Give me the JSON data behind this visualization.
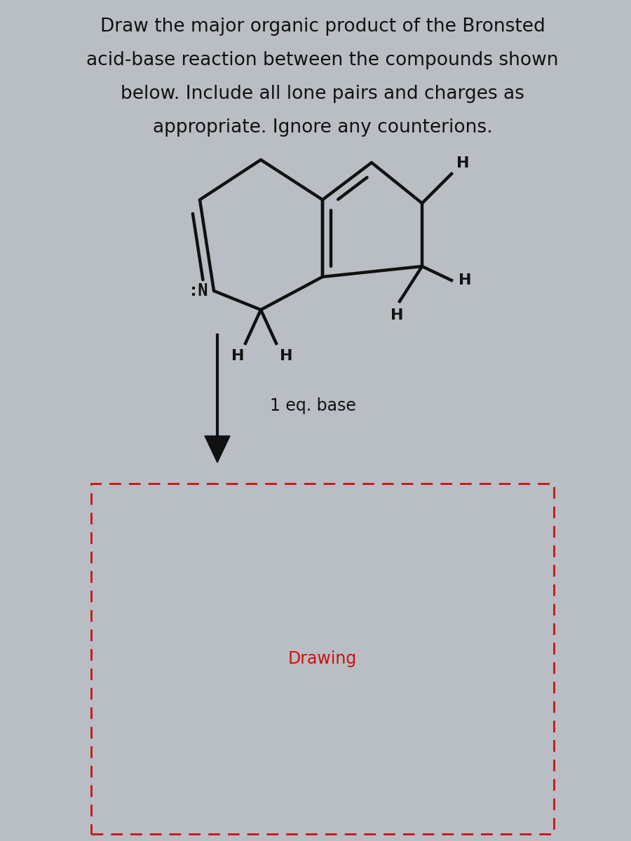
{
  "title_lines": [
    "Draw the major organic product of the Bronsted",
    "acid-base reaction between the compounds shown",
    "below. Include all lone pairs and charges as",
    "appropriate. Ignore any counterions."
  ],
  "title_fontsize": 19,
  "background_color": "#b8bec4",
  "molecule_color": "#111111",
  "arrow_label": "1 eq. base",
  "drawing_label": "Drawing",
  "drawing_box_color": "#cc1111",
  "fig_width": 9.0,
  "fig_height": 12.0
}
